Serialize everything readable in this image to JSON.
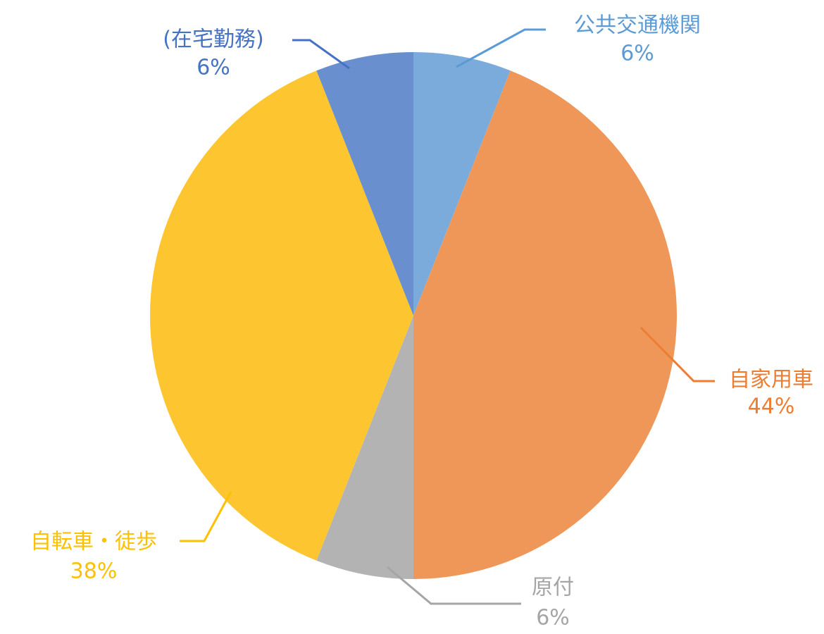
{
  "chart_data": {
    "type": "pie",
    "categories": [
      "公共交通機関",
      "自家用車",
      "原付",
      "自転車・徒歩",
      "(在宅勤務)"
    ],
    "values": [
      6,
      44,
      6,
      38,
      6
    ],
    "value_labels": [
      "6%",
      "44%",
      "6%",
      "38%",
      "6%"
    ],
    "colors": [
      "#7aabdb",
      "#ef9758",
      "#b3b3b3",
      "#fdc631",
      "#6a8fcf"
    ],
    "label_colors": [
      "#5b9bd5",
      "#ed7d31",
      "#a5a5a5",
      "#ffc000",
      "#4472c4"
    ]
  }
}
